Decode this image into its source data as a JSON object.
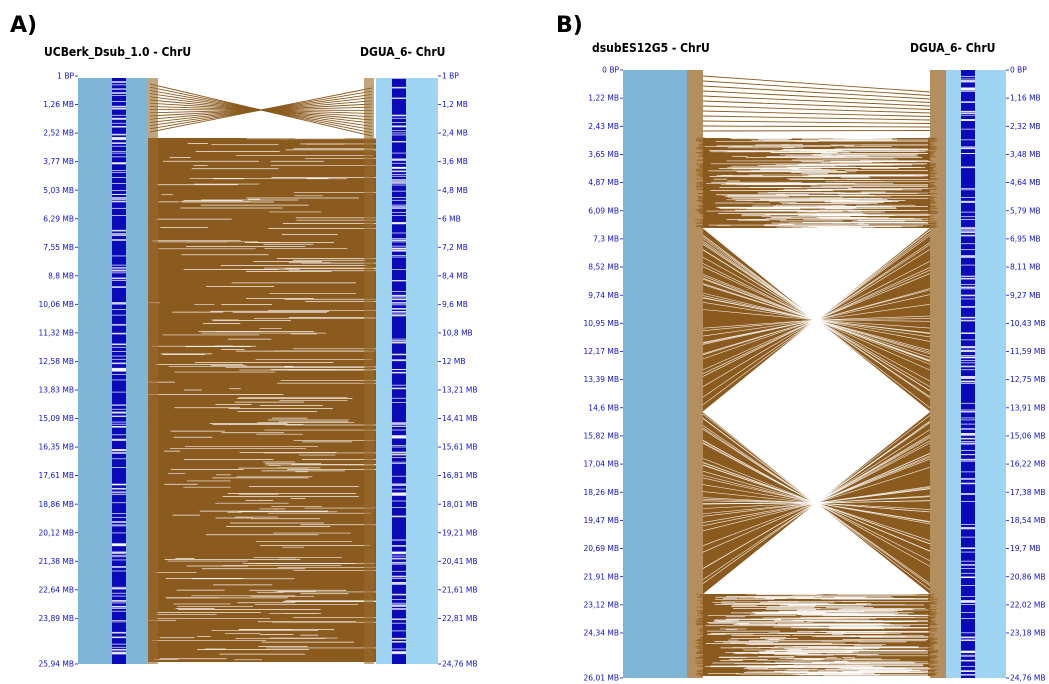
{
  "colors": {
    "block": "#8b5a1e",
    "left_chrom": "#7fb6d6",
    "right_chrom": "#9fd4f2",
    "gene_density": "#0a0ab8",
    "tick_label": "#1111cc",
    "gap_line": "#ffffff"
  },
  "panels": [
    {
      "letter": "A)",
      "left_title": "UCBerk_Dsub_1.0 - ChrU",
      "right_title": "DGUA_6- ChrU",
      "left_ticks": [
        "1 BP",
        "1,26 MB",
        "2,52 MB",
        "3,77 MB",
        "5,03 MB",
        "6,29 MB",
        "7,55 MB",
        "8,8 MB",
        "10,06 MB",
        "11,32 MB",
        "12,58 MB",
        "13,83 MB",
        "15,09 MB",
        "16,35 MB",
        "17,61 MB",
        "18,86 MB",
        "20,12 MB",
        "21,38 MB",
        "22,64 MB",
        "23,89 MB",
        "25,94 MB"
      ],
      "right_ticks": [
        "1 BP",
        "1,2 MB",
        "2,4 MB",
        "3,6 MB",
        "4,8 MB",
        "6 MB",
        "7,2 MB",
        "8,4 MB",
        "9,6 MB",
        "10,8 MB",
        "12 MB",
        "13,21 MB",
        "14,41 MB",
        "15,61 MB",
        "16,81 MB",
        "18,01 MB",
        "19,21 MB",
        "20,41 MB",
        "21,61 MB",
        "22,81 MB",
        "24,76 MB"
      ]
    },
    {
      "letter": "B)",
      "left_title": "dsubES12G5 - ChrU",
      "right_title": "DGUA_6- ChrU",
      "left_ticks": [
        "0 BP",
        "1,22 MB",
        "2,43 MB",
        "3,65 MB",
        "4,87 MB",
        "6,09 MB",
        "7,3 MB",
        "8,52 MB",
        "9,74 MB",
        "10,95 MB",
        "12,17 MB",
        "13,39 MB",
        "14,6 MB",
        "15,82 MB",
        "17,04 MB",
        "18,26 MB",
        "19,47 MB",
        "20,69 MB",
        "21,91 MB",
        "23,12 MB",
        "24,34 MB",
        "26,01 MB"
      ],
      "right_ticks": [
        "0 BP",
        "1,16 MB",
        "2,32 MB",
        "3,48 MB",
        "4,64 MB",
        "5,79 MB",
        "6,95 MB",
        "8,11 MB",
        "9,27 MB",
        "10,43 MB",
        "11,59 MB",
        "12,75 MB",
        "13,91 MB",
        "15,06 MB",
        "16,22 MB",
        "17,38 MB",
        "18,54 MB",
        "19,7 MB",
        "20,86 MB",
        "22,02 MB",
        "23,18 MB",
        "24,76 MB"
      ]
    }
  ]
}
